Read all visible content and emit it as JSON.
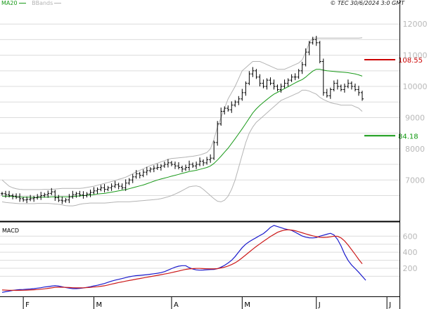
{
  "chart_data": [
    {
      "type": "candlestick",
      "legend": [
        {
          "name": "MA20",
          "color": "#1a9a1a"
        },
        {
          "name": "BBands",
          "color": "#b4b4b4"
        }
      ],
      "credit": "© TEC 30/6/2024 3:0 GMT",
      "yticks": [
        70,
        80,
        90,
        100,
        110,
        120
      ],
      "ytick_labels": [
        "7000",
        "8000",
        "9000",
        "10000",
        "11000",
        "12000"
      ],
      "ylim": [
        57,
        125
      ],
      "levels": [
        {
          "label": "108.55",
          "value": 108.55,
          "color": "#cc0000"
        },
        {
          "label": "84.18",
          "value": 84.18,
          "color": "#119911"
        }
      ],
      "xticks": [
        {
          "label": "F",
          "index": 6
        },
        {
          "label": "M",
          "index": 26
        },
        {
          "label": "A",
          "index": 48
        },
        {
          "label": "M",
          "index": 68
        },
        {
          "label": "J",
          "index": 89
        },
        {
          "label": "J",
          "index": 109
        }
      ],
      "close": [
        65.6,
        65.3,
        65.0,
        64.8,
        64.5,
        64.0,
        63.6,
        63.8,
        64.0,
        64.3,
        64.6,
        65.0,
        65.3,
        65.7,
        66.2,
        64.3,
        63.5,
        63.3,
        63.6,
        64.6,
        65.3,
        65.6,
        65.2,
        65.0,
        65.5,
        66.0,
        66.5,
        67.0,
        67.5,
        67.0,
        67.5,
        68.0,
        68.5,
        68.0,
        67.5,
        69.0,
        70.0,
        71.0,
        72.0,
        71.5,
        72.5,
        73.0,
        73.5,
        73.8,
        74.0,
        74.5,
        75.0,
        75.5,
        75.0,
        74.5,
        74.0,
        73.5,
        74.0,
        75.0,
        74.5,
        75.0,
        76.0,
        75.5,
        76.5,
        77.0,
        82.0,
        88.0,
        92.0,
        93.0,
        92.5,
        94.0,
        95.0,
        96.0,
        98.0,
        101.0,
        104.0,
        105.0,
        103.0,
        101.0,
        100.0,
        102.0,
        101.0,
        100.0,
        99.0,
        100.0,
        101.0,
        102.0,
        103.0,
        103.0,
        105.0,
        107.0,
        111.0,
        114.0,
        115.0,
        114.0,
        108.0,
        98.0,
        97.0,
        99.0,
        101.0,
        100.0,
        99.0,
        100.0,
        101.0,
        100.0,
        99.0,
        98.0,
        96.0
      ],
      "ma20": [
        64.8,
        64.8,
        64.8,
        64.7,
        64.6,
        64.6,
        64.5,
        64.5,
        64.5,
        64.4,
        64.4,
        64.5,
        64.5,
        64.5,
        64.6,
        64.6,
        64.6,
        64.6,
        64.6,
        64.6,
        64.7,
        64.8,
        64.9,
        65.0,
        65.1,
        65.2,
        65.3,
        65.5,
        65.6,
        65.7,
        65.9,
        66.1,
        66.3,
        66.5,
        66.7,
        66.9,
        67.2,
        67.5,
        67.8,
        68.1,
        68.4,
        68.8,
        69.2,
        69.6,
        70.0,
        70.3,
        70.6,
        70.9,
        71.2,
        71.5,
        71.8,
        72.1,
        72.4,
        72.7,
        72.9,
        73.1,
        73.4,
        73.7,
        74.0,
        74.5,
        75.3,
        76.4,
        77.6,
        78.9,
        80.2,
        81.7,
        83.2,
        84.8,
        86.4,
        88.1,
        89.8,
        91.5,
        92.8,
        93.9,
        94.9,
        95.8,
        96.7,
        97.5,
        98.1,
        98.7,
        99.3,
        99.9,
        100.5,
        101.1,
        101.7,
        102.2,
        103.0,
        104.0,
        104.9,
        105.5,
        105.5,
        105.2,
        105.0,
        104.9,
        104.8,
        104.7,
        104.6,
        104.5,
        104.4,
        104.2,
        104.0,
        103.7,
        103.3
      ],
      "bb_upper": [
        70,
        69,
        68,
        67.5,
        67.2,
        67.0,
        66.9,
        66.9,
        66.9,
        66.9,
        66.9,
        66.9,
        67.0,
        67.0,
        67.0,
        67.1,
        67.2,
        67.3,
        67.3,
        67.3,
        67.3,
        67.3,
        67.3,
        67.4,
        67.6,
        67.8,
        68.0,
        68.3,
        68.6,
        68.9,
        69.2,
        69.5,
        69.8,
        70.2,
        70.5,
        70.9,
        71.4,
        72.0,
        72.6,
        73.1,
        73.6,
        74.1,
        74.6,
        75.0,
        75.4,
        75.8,
        76.2,
        76.6,
        76.9,
        77.0,
        77.1,
        77.2,
        77.3,
        77.5,
        77.6,
        77.8,
        78.0,
        78.4,
        78.8,
        80.0,
        83.0,
        87.0,
        90.0,
        93.0,
        96.0,
        98.0,
        100.0,
        102.5,
        105.0,
        106.0,
        107.0,
        108.0,
        108.0,
        108.0,
        107.5,
        107.0,
        106.5,
        106.0,
        105.5,
        105.5,
        105.5,
        106.0,
        106.5,
        107.0,
        107.5,
        108.5,
        111.0,
        114.0,
        115.5,
        115.5,
        115.5,
        115.5,
        115.5,
        115.5,
        115.5,
        115.5,
        115.5,
        115.5,
        115.5,
        115.5,
        115.5,
        115.5,
        115.6
      ],
      "bb_lower": [
        63.0,
        62.8,
        62.7,
        62.6,
        62.5,
        62.4,
        62.4,
        62.4,
        62.4,
        62.4,
        62.5,
        62.5,
        62.5,
        62.5,
        62.4,
        62.3,
        62.2,
        62.0,
        61.8,
        61.7,
        61.7,
        61.9,
        62.2,
        62.4,
        62.5,
        62.6,
        62.6,
        62.6,
        62.6,
        62.6,
        62.7,
        62.8,
        62.9,
        63.0,
        63.0,
        63.0,
        63.0,
        63.1,
        63.2,
        63.3,
        63.4,
        63.5,
        63.6,
        63.7,
        63.8,
        64.0,
        64.3,
        64.6,
        65.0,
        65.5,
        66.0,
        66.6,
        67.2,
        67.8,
        68.0,
        68.1,
        67.8,
        67.0,
        66.0,
        65.0,
        64.0,
        63.2,
        63.0,
        63.5,
        64.8,
        67.0,
        70.0,
        74.0,
        78.0,
        82.0,
        85.0,
        87.0,
        88.5,
        89.5,
        90.5,
        91.5,
        92.5,
        93.5,
        94.5,
        95.5,
        96.0,
        96.5,
        97.0,
        97.5,
        98.0,
        98.8,
        98.8,
        98.5,
        98.0,
        97.5,
        96.5,
        95.8,
        95.3,
        94.8,
        94.5,
        94.3,
        94.0,
        94.0,
        94.0,
        94.0,
        93.5,
        93.0,
        92.0
      ]
    },
    {
      "type": "line",
      "title": "MACD",
      "yticks": [
        200,
        400,
        600
      ],
      "ytick_labels": [
        "200",
        "400",
        "600"
      ],
      "ylim": [
        -150,
        760
      ],
      "series": [
        {
          "color": "#1a1acc",
          "values": [
            -100,
            -92,
            -84,
            -76,
            -70,
            -66,
            -64,
            -61,
            -58,
            -54,
            -48,
            -42,
            -34,
            -28,
            -22,
            -18,
            -22,
            -30,
            -40,
            -48,
            -54,
            -54,
            -50,
            -45,
            -38,
            -30,
            -20,
            -12,
            0,
            10,
            26,
            40,
            52,
            62,
            72,
            84,
            94,
            102,
            108,
            112,
            116,
            120,
            126,
            132,
            138,
            146,
            158,
            176,
            196,
            214,
            226,
            232,
            232,
            208,
            190,
            180,
            176,
            178,
            182,
            184,
            186,
            196,
            214,
            236,
            266,
            300,
            346,
            402,
            456,
            500,
            532,
            558,
            582,
            608,
            632,
            668,
            710,
            734,
            720,
            706,
            692,
            682,
            672,
            650,
            626,
            602,
            588,
            580,
            578,
            582,
            600,
            612,
            624,
            636,
            616,
            560,
            478,
            378,
            298,
            240,
            196,
            150,
            100,
            50
          ]
        },
        {
          "color": "#cc1a1a",
          "values": [
            -70,
            -72,
            -74,
            -75,
            -76,
            -75,
            -74,
            -72,
            -70,
            -68,
            -65,
            -61,
            -56,
            -50,
            -44,
            -38,
            -36,
            -36,
            -38,
            -40,
            -42,
            -44,
            -44,
            -43,
            -41,
            -38,
            -34,
            -30,
            -24,
            -18,
            -8,
            2,
            12,
            22,
            30,
            40,
            48,
            56,
            64,
            72,
            80,
            88,
            96,
            104,
            112,
            120,
            128,
            136,
            146,
            156,
            166,
            176,
            186,
            192,
            196,
            198,
            198,
            196,
            194,
            192,
            192,
            196,
            204,
            214,
            228,
            246,
            268,
            296,
            330,
            366,
            402,
            438,
            472,
            504,
            536,
            566,
            596,
            622,
            648,
            664,
            676,
            680,
            676,
            668,
            656,
            642,
            628,
            616,
            604,
            594,
            586,
            584,
            586,
            592,
            600,
            598,
            578,
            540,
            490,
            432,
            372,
            310,
            256
          ]
        }
      ]
    }
  ]
}
